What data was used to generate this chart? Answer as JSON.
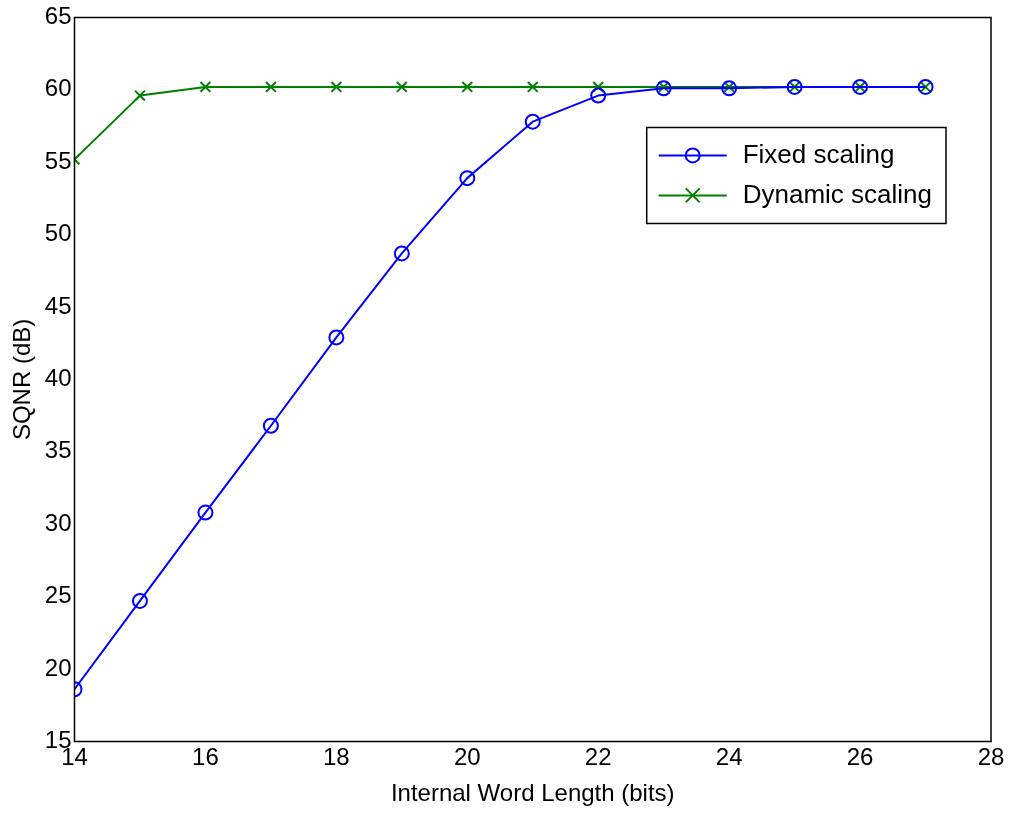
{
  "chart_data": {
    "type": "line",
    "xlabel": "Internal Word Length (bits)",
    "ylabel": "SQNR (dB)",
    "x": [
      14,
      15,
      16,
      17,
      18,
      19,
      20,
      21,
      22,
      23,
      24,
      25,
      26,
      27
    ],
    "series": [
      {
        "name": "Fixed scaling",
        "color": "#0000ff",
        "marker": "circle",
        "values": [
          18.6,
          24.7,
          30.8,
          36.8,
          42.9,
          48.7,
          53.9,
          57.8,
          59.6,
          60.1,
          60.1,
          60.2,
          60.2,
          60.2
        ]
      },
      {
        "name": "Dynamic scaling",
        "color": "#008000",
        "marker": "cross",
        "values": [
          55.2,
          59.6,
          60.2,
          60.2,
          60.2,
          60.2,
          60.2,
          60.2,
          60.2,
          60.2,
          60.2,
          60.2,
          60.2,
          60.2
        ]
      }
    ],
    "xlim": [
      14,
      28
    ],
    "xticks": [
      14,
      16,
      18,
      20,
      22,
      24,
      26,
      28
    ],
    "ylim": [
      15,
      65
    ],
    "yticks": [
      15,
      20,
      25,
      30,
      35,
      40,
      45,
      50,
      55,
      60,
      65
    ],
    "grid": false,
    "legend": "top right",
    "line_style": "solid"
  }
}
